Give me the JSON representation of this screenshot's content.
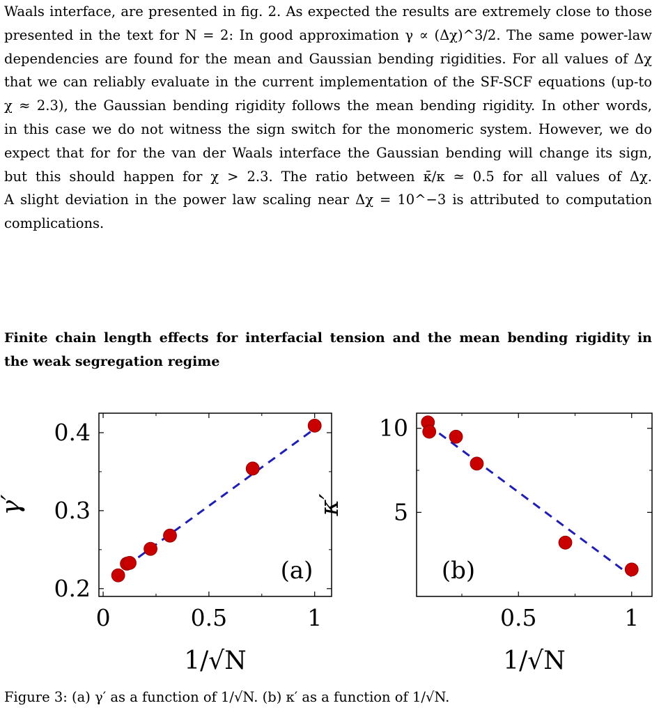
{
  "paragraph": {
    "lines": [
      "Waals interface, are presented in fig. 2. As expected the results are extremely close to those",
      "presented in the text for N = 2: In good approximation γ ∝ (Δχ)^3/2. The same power-law",
      "dependencies are found for the mean and Gaussian bending rigidities. For all values of Δχ",
      "that we can reliably evaluate in the current implementation of the SF-SCF equations (up-to",
      "χ ≈ 2.3), the Gaussian bending rigidity follows the mean bending rigidity. In other words,",
      "in this case we do not witness the sign switch for the monomeric system. However, we do",
      "expect that for for the van der Waals interface the Gaussian bending will change its sign,",
      "but this should happen for χ > 2.3. The ratio between κ̄/κ ≃ 0.5 for all values of Δχ.",
      "A slight deviation in the power law scaling near Δχ = 10^−3 is attributed to computation",
      "complications."
    ]
  },
  "heading": {
    "line1": "Finite chain length effects for interfacial tension and the mean bending rigidity in",
    "line2": "the weak segregation regime"
  },
  "chart_data": [
    {
      "type": "scatter",
      "panel_label": "(a)",
      "xlabel": "1/√N",
      "ylabel": "γ′",
      "xlim": [
        -0.02,
        1.08
      ],
      "ylim": [
        0.19,
        0.425
      ],
      "xticks": [
        0,
        0.5,
        1
      ],
      "xtick_labels": [
        "0",
        "0.5",
        "1"
      ],
      "yticks": [
        0.2,
        0.3,
        0.4
      ],
      "ytick_labels": [
        "0.2",
        "0.3",
        "0.4"
      ],
      "points": [
        {
          "x": 0.071,
          "y": 0.217
        },
        {
          "x": 0.112,
          "y": 0.232
        },
        {
          "x": 0.125,
          "y": 0.233
        },
        {
          "x": 0.224,
          "y": 0.251
        },
        {
          "x": 0.316,
          "y": 0.268
        },
        {
          "x": 0.707,
          "y": 0.354
        },
        {
          "x": 1.0,
          "y": 0.409
        }
      ],
      "fit_line": {
        "x": [
          0.11,
          1.0
        ],
        "y": [
          0.229,
          0.405
        ]
      },
      "marker_color": "#c80000",
      "line_color": "#1f1fb4"
    },
    {
      "type": "scatter",
      "panel_label": "(b)",
      "xlabel": "1/√N",
      "ylabel": "κ′",
      "xlim": [
        0.05,
        1.09
      ],
      "ylim": [
        0.0,
        10.9
      ],
      "xticks": [
        0.5,
        1
      ],
      "xtick_labels": [
        "0.5",
        "1"
      ],
      "yticks": [
        5,
        10
      ],
      "ytick_labels": [
        "5",
        "10"
      ],
      "points": [
        {
          "x": 0.1,
          "y": 10.35
        },
        {
          "x": 0.106,
          "y": 9.8
        },
        {
          "x": 0.224,
          "y": 9.5
        },
        {
          "x": 0.316,
          "y": 7.9
        },
        {
          "x": 0.707,
          "y": 3.2
        },
        {
          "x": 1.0,
          "y": 1.6
        }
      ],
      "fit_line": {
        "x": [
          0.15,
          1.0
        ],
        "y": [
          9.7,
          1.2
        ]
      },
      "marker_color": "#c80000",
      "line_color": "#1f1fb4"
    }
  ],
  "caption": {
    "left": "Figure 3: (a) γ′ as a function of 1/√N. (b) κ′ as a function of 1/√N."
  }
}
